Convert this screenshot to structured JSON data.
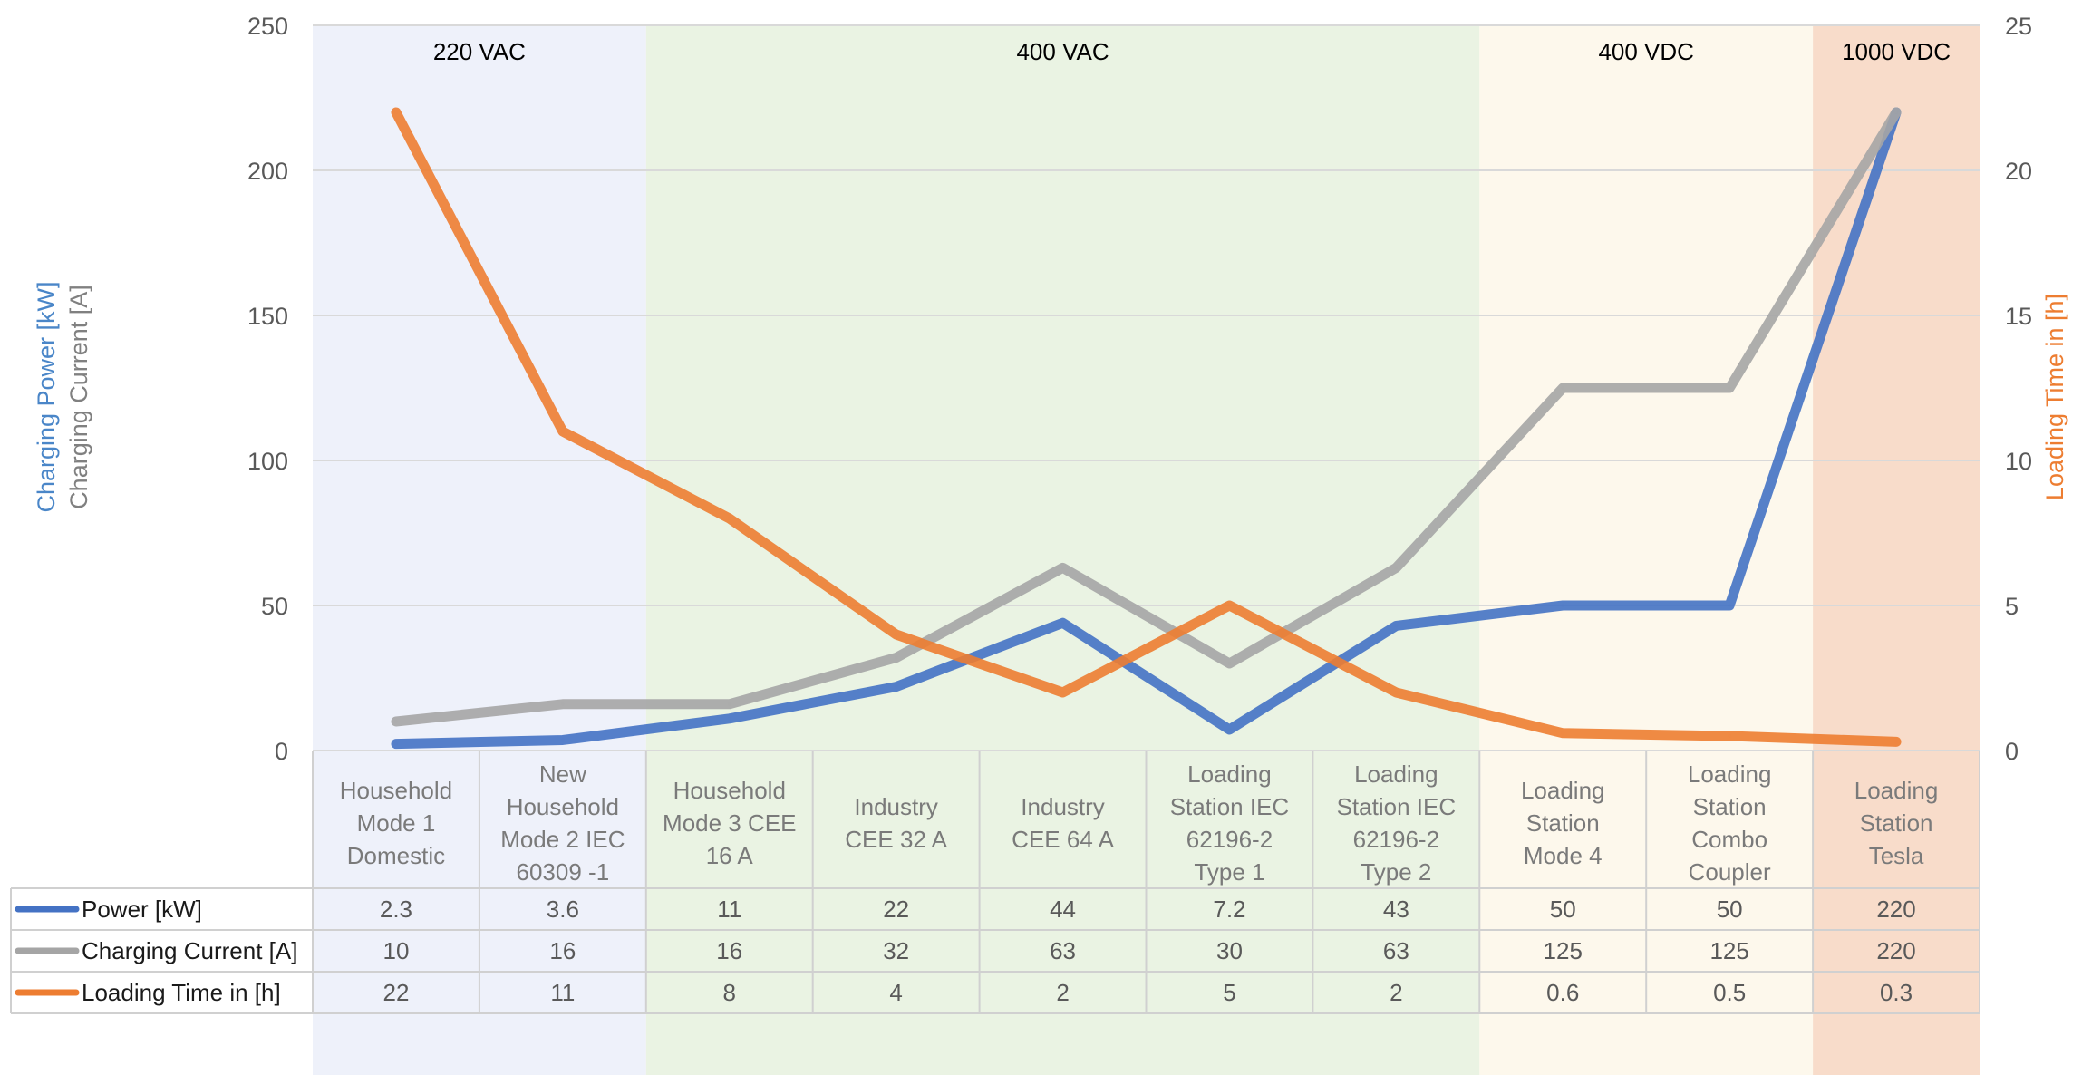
{
  "chart_data": {
    "type": "line",
    "categories": [
      [
        "Household",
        "Mode 1",
        "Domestic"
      ],
      [
        "New",
        "Household",
        "Mode 2 IEC",
        "60309 -1"
      ],
      [
        "Household",
        "Mode 3 CEE",
        "16 A"
      ],
      [
        "Industry",
        "CEE 32 A"
      ],
      [
        "Industry",
        "CEE 64 A"
      ],
      [
        "Loading",
        "Station IEC",
        "62196-2",
        "Type 1"
      ],
      [
        "Loading",
        "Station IEC",
        "62196-2",
        "Type 2"
      ],
      [
        "Loading",
        "Station",
        "Mode 4"
      ],
      [
        "Loading",
        "Station",
        "Combo",
        "Coupler"
      ],
      [
        "Loading",
        "Station",
        "Tesla"
      ]
    ],
    "series": [
      {
        "name": "Power [kW]",
        "axis": "left",
        "color": "#4472C4",
        "values": [
          2.3,
          3.6,
          11,
          22,
          44,
          7.2,
          43,
          50,
          50,
          220
        ],
        "labels": [
          "2.3",
          "3.6",
          "11",
          "22",
          "44",
          "7.2",
          "43",
          "50",
          "50",
          "220"
        ]
      },
      {
        "name": "Charging Current [A]",
        "axis": "left",
        "color": "#A5A5A5",
        "values": [
          10,
          16,
          16,
          32,
          63,
          30,
          63,
          125,
          125,
          220
        ],
        "labels": [
          "10",
          "16",
          "16",
          "32",
          "63",
          "30",
          "63",
          "125",
          "125",
          "220"
        ]
      },
      {
        "name": "Loading Time in [h]",
        "axis": "right",
        "color": "#ED7D31",
        "values": [
          22,
          11,
          8,
          4,
          2,
          5,
          2,
          0.6,
          0.5,
          0.3
        ],
        "labels": [
          "22",
          "11",
          "8",
          "4",
          "2",
          "5",
          "2",
          "0.6",
          "0.5",
          "0.3"
        ]
      }
    ],
    "y_left": {
      "ticks": [
        "0",
        "50",
        "100",
        "150",
        "200",
        "250"
      ],
      "min": 0,
      "max": 250,
      "title_lines": [
        "Charging Power [kW]",
        "Charging Current [A]"
      ]
    },
    "y_right": {
      "ticks": [
        "0",
        "5",
        "10",
        "15",
        "20",
        "25"
      ],
      "min": 0,
      "max": 25,
      "title": "Loading Time in [h]"
    },
    "bands": [
      {
        "label": "220 VAC",
        "from": 0,
        "to": 2,
        "color": "#EEF1FA"
      },
      {
        "label": "400 VAC",
        "from": 2,
        "to": 7,
        "color": "#EAF3E3"
      },
      {
        "label": "400 VDC",
        "from": 7,
        "to": 9,
        "color": "#FDF8EC"
      },
      {
        "label": "1000 VDC",
        "from": 9,
        "to": 10,
        "color": "#F8DCCA"
      }
    ],
    "grid": true,
    "legend": "data-table"
  }
}
